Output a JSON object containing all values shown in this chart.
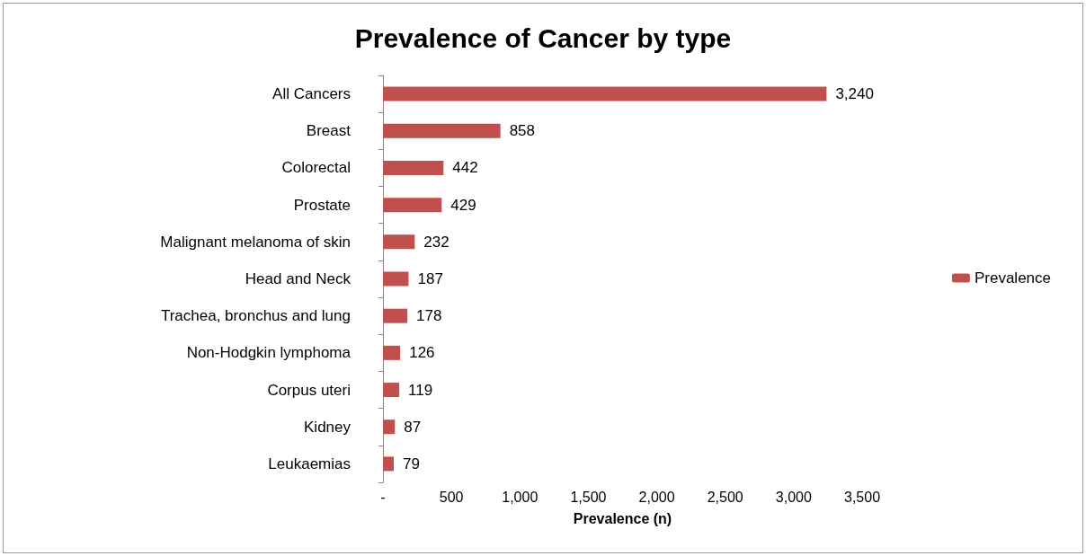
{
  "chart_data": {
    "type": "bar",
    "orientation": "horizontal",
    "title": "Prevalence of Cancer by type",
    "xlabel": "Prevalence (n)",
    "categories": [
      "All Cancers",
      "Breast",
      "Colorectal",
      "Prostate",
      "Malignant melanoma of skin",
      "Head and Neck",
      "Trachea, bronchus and lung",
      "Non-Hodgkin lymphoma",
      "Corpus uteri",
      "Kidney",
      "Leukaemias"
    ],
    "series": [
      {
        "name": "Prevalence",
        "color": "#c0504d",
        "values": [
          3240,
          858,
          442,
          429,
          232,
          187,
          178,
          126,
          119,
          87,
          79
        ],
        "value_labels": [
          "3,240",
          "858",
          "442",
          "429",
          "232",
          "187",
          "178",
          "126",
          "119",
          "87",
          "79"
        ]
      }
    ],
    "xlim": [
      0,
      3500
    ],
    "xticks": [
      {
        "value": 0,
        "label": "-"
      },
      500,
      {
        "value": 1000,
        "label": "1,000"
      },
      {
        "value": 1500,
        "label": "1,500"
      },
      {
        "value": 2000,
        "label": "2,000"
      },
      {
        "value": 2500,
        "label": "2,500"
      },
      {
        "value": 3000,
        "label": "3,000"
      },
      {
        "value": 3500,
        "label": "3,500"
      }
    ],
    "grid": false,
    "legend": "right"
  }
}
